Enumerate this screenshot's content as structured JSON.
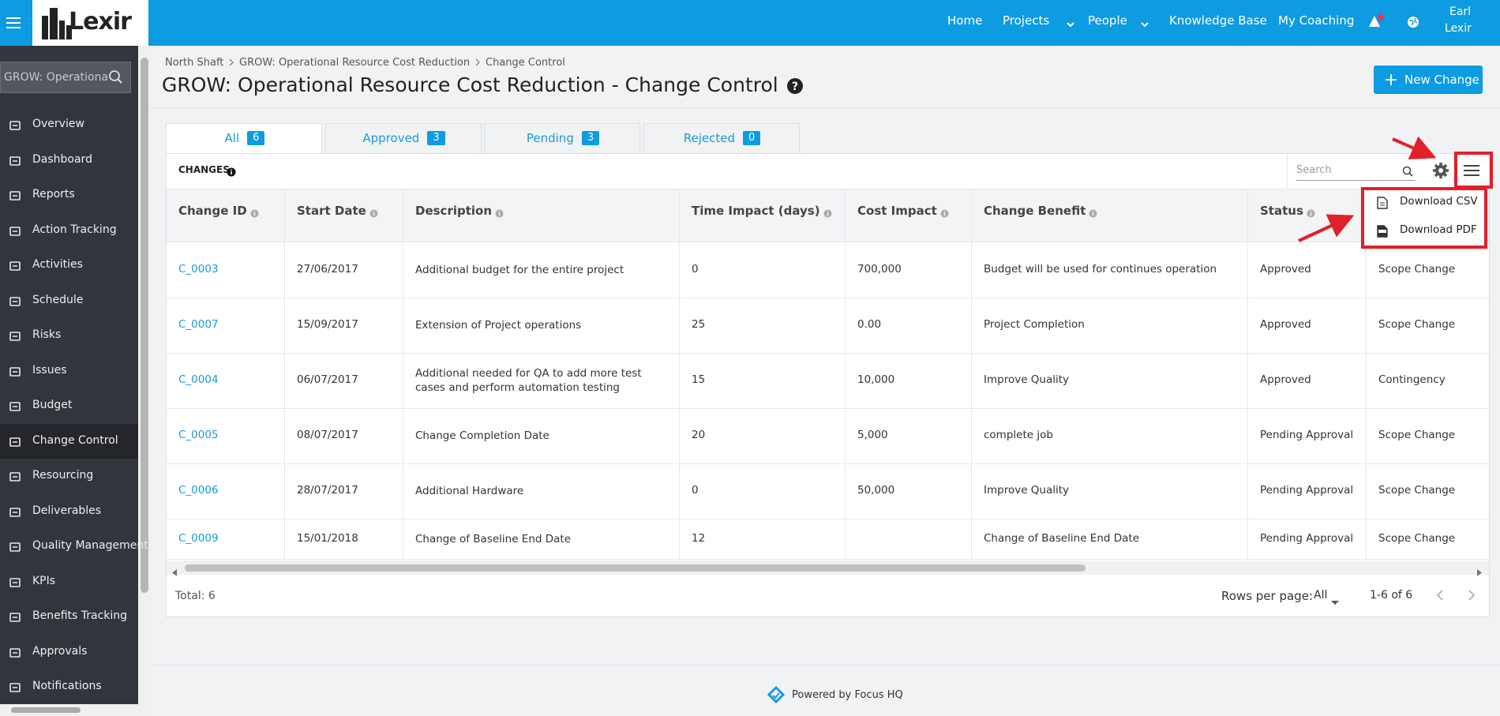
{
  "header": {
    "logo": "Lexir",
    "nav": [
      "Home",
      "Projects",
      "People",
      "Knowledge Base",
      "My Coaching"
    ],
    "user_first": "Earl",
    "user_last": "Lexir"
  },
  "sidebar": {
    "search": "GROW: Operational Resource",
    "items": [
      "Overview",
      "Dashboard",
      "Reports",
      "Action Tracking",
      "Activities",
      "Schedule",
      "Risks",
      "Issues",
      "Budget",
      "Change Control",
      "Resourcing",
      "Deliverables",
      "Quality Management",
      "KPIs",
      "Benefits Tracking",
      "Approvals",
      "Notifications"
    ]
  },
  "breadcrumb": [
    "North Shaft",
    "GROW: Operational Resource Cost Reduction",
    "Change Control"
  ],
  "title": "GROW: Operational Resource Cost Reduction - Change Control",
  "new_button": "New Change",
  "tabs": [
    {
      "label": "All",
      "count": "6"
    },
    {
      "label": "Approved",
      "count": "3"
    },
    {
      "label": "Pending",
      "count": "3"
    },
    {
      "label": "Rejected",
      "count": "0"
    }
  ],
  "section": "CHANGES",
  "search_placeholder": "Search",
  "menu": [
    "Download CSV",
    "Download PDF"
  ],
  "table": {
    "columns": [
      "Change ID",
      "Start Date",
      "Description",
      "Time Impact (days)",
      "Cost Impact",
      "Change Benefit",
      "Status",
      null
    ],
    "rows": [
      [
        "C_0003",
        "27/06/2017",
        "Additional budget for the entire project",
        "0",
        "700,000",
        "Budget will be used for continues operation",
        "Approved",
        "Scope Change"
      ],
      [
        "C_0007",
        "15/09/2017",
        "Extension of Project operations",
        "25",
        "0.00",
        "Project Completion",
        "Approved",
        "Scope Change"
      ],
      [
        "C_0004",
        "06/07/2017",
        "Additional needed for QA to add more test cases and perform automation testing",
        "15",
        "10,000",
        "Improve Quality",
        "Approved",
        "Contingency"
      ],
      [
        "C_0005",
        "08/07/2017",
        "Change Completion Date",
        "20",
        "5,000",
        "complete job",
        "Pending Approval",
        "Scope Change"
      ],
      [
        "C_0006",
        "28/07/2017",
        "Additional Hardware",
        "0",
        "50,000",
        "Improve Quality",
        "Pending Approval",
        "Scope Change"
      ],
      [
        "C_0009",
        "15/01/2018",
        "Change of Baseline End Date",
        "12",
        null,
        "Change of Baseline End Date",
        "Pending Approval",
        "Scope Change"
      ]
    ]
  },
  "footer": {
    "total": "Total: 6",
    "rows_per_page": "Rows per page:",
    "rows_value": "All",
    "range": "1-6 of 6"
  },
  "powered": "Powered by Focus HQ"
}
